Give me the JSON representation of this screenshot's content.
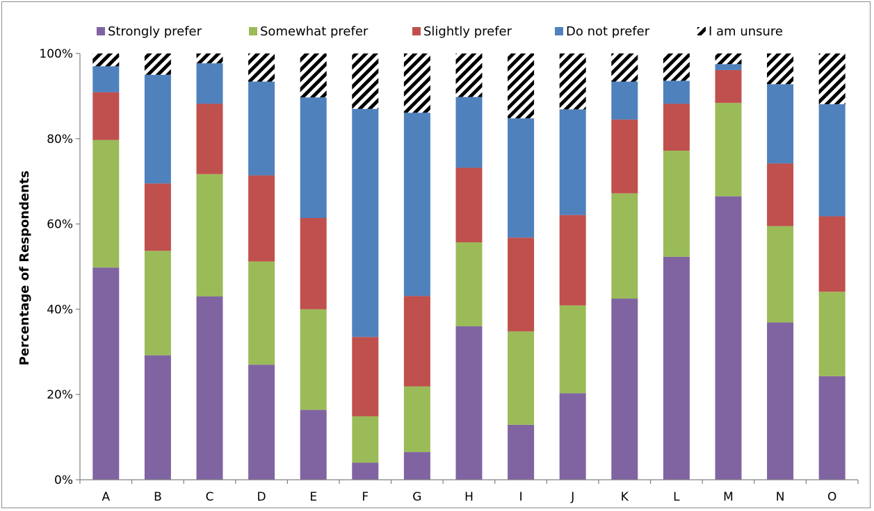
{
  "chart_data": {
    "type": "bar",
    "stacked": true,
    "title": "",
    "xlabel": "",
    "ylabel": "Percentage of Respondents",
    "ylim": [
      0,
      100
    ],
    "yticks": [
      "0%",
      "20%",
      "40%",
      "60%",
      "80%",
      "100%"
    ],
    "grid": false,
    "legend_position": "top",
    "categories": [
      "A",
      "B",
      "C",
      "D",
      "E",
      "F",
      "G",
      "H",
      "I",
      "J",
      "K",
      "L",
      "M",
      "N",
      "O"
    ],
    "series": [
      {
        "name": "Strongly prefer",
        "color": "#8064a2",
        "values": [
          49.8,
          29.2,
          43.0,
          27.0,
          16.4,
          4.0,
          6.5,
          36.0,
          12.9,
          20.3,
          42.5,
          52.3,
          66.5,
          36.9,
          24.3
        ]
      },
      {
        "name": "Somewhat prefer",
        "color": "#9bbb59",
        "values": [
          29.9,
          24.5,
          28.7,
          24.2,
          23.6,
          10.9,
          15.4,
          19.7,
          21.9,
          20.6,
          24.7,
          24.9,
          21.9,
          22.6,
          19.8
        ]
      },
      {
        "name": "Slightly prefer",
        "color": "#c0504d",
        "values": [
          11.2,
          15.8,
          16.5,
          20.2,
          21.4,
          18.6,
          21.2,
          17.5,
          22.0,
          21.2,
          17.3,
          11.0,
          7.7,
          14.7,
          17.7
        ]
      },
      {
        "name": "Do not prefer",
        "color": "#4f81bd",
        "values": [
          6.1,
          25.5,
          9.5,
          22.0,
          28.3,
          53.5,
          43.0,
          16.6,
          28.0,
          24.8,
          8.9,
          5.4,
          1.4,
          18.6,
          26.3
        ]
      },
      {
        "name": "I am unsure",
        "pattern": "diagonal-stripes",
        "values": [
          3.0,
          5.0,
          2.3,
          6.6,
          10.3,
          13.0,
          13.9,
          10.2,
          15.2,
          13.1,
          6.6,
          6.4,
          2.5,
          7.2,
          11.9
        ]
      }
    ]
  }
}
